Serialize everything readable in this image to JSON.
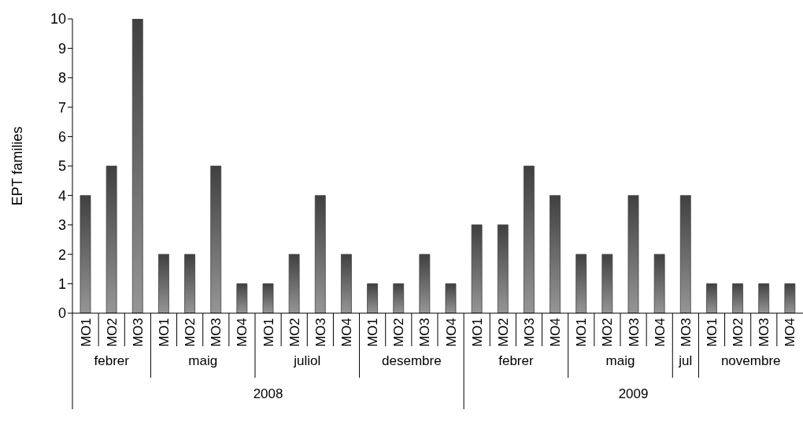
{
  "chart_data": {
    "type": "bar",
    "ylabel": "EPT families",
    "categories": [
      "MO1",
      "MO2",
      "MO3",
      "MO1",
      "MO2",
      "MO3",
      "MO4",
      "MO1",
      "MO2",
      "MO3",
      "MO4",
      "MO1",
      "MO2",
      "MO3",
      "MO4",
      "MO1",
      "MO2",
      "MO3",
      "MO4",
      "MO1",
      "MO2",
      "MO3",
      "MO4",
      "MO3",
      "MO1",
      "MO2",
      "MO3",
      "MO4"
    ],
    "values": [
      4,
      5,
      10,
      2,
      2,
      5,
      1,
      1,
      2,
      4,
      2,
      1,
      1,
      2,
      1,
      3,
      3,
      5,
      4,
      2,
      2,
      4,
      2,
      4,
      1,
      1,
      1,
      1
    ],
    "color": "#404040",
    "ylim": [
      0,
      10
    ],
    "yticks": [
      0,
      1,
      2,
      3,
      4,
      5,
      6,
      7,
      8,
      9,
      10
    ],
    "grid": false,
    "legend": false,
    "annotations": [
      "febrer",
      "maig",
      "juliol",
      "desembre",
      "febrer",
      "maig",
      "jul",
      "novembre",
      "2008",
      "2009"
    ]
  }
}
